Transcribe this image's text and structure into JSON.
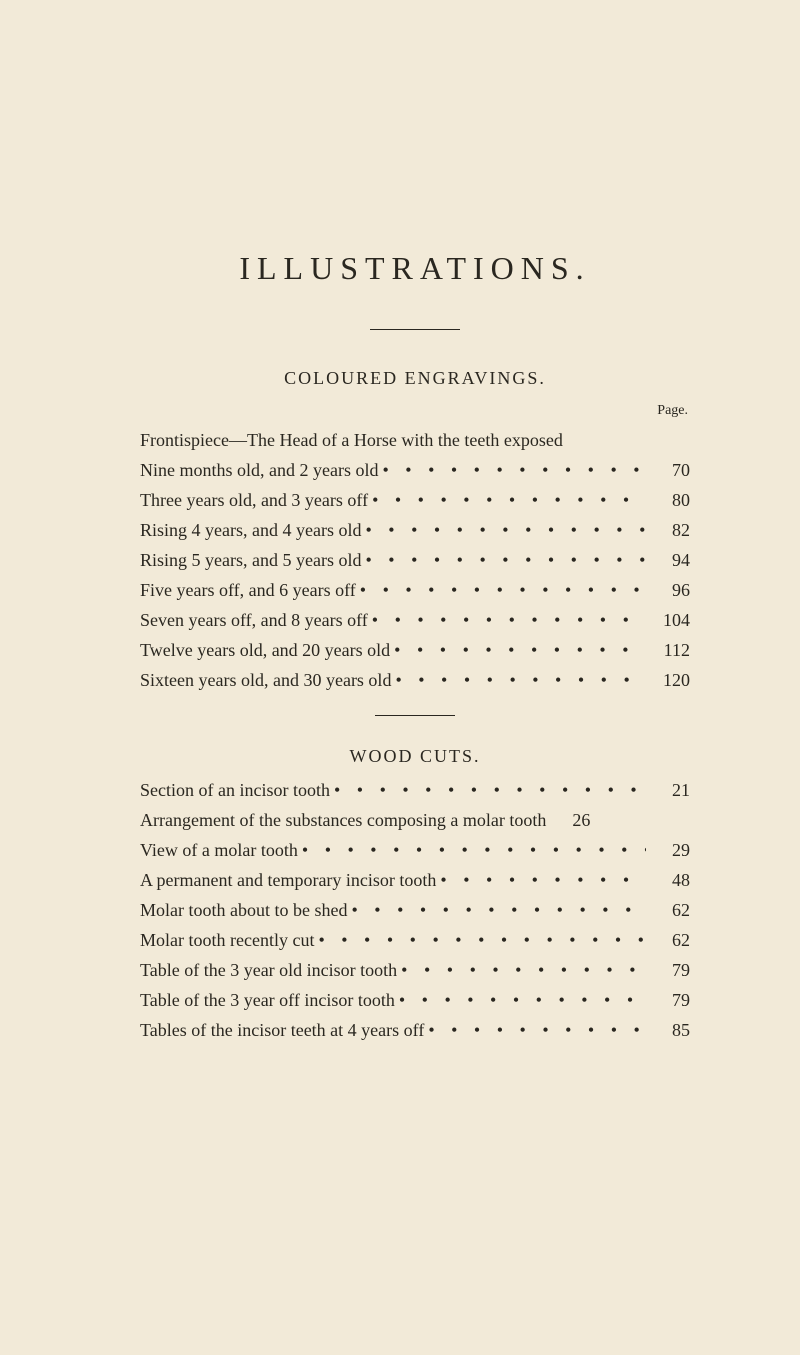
{
  "title": "ILLUSTRATIONS.",
  "page_label": "Page.",
  "coloured": {
    "heading": "COLOURED ENGRAVINGS.",
    "entries": [
      {
        "label": "Frontispiece—The Head of a Horse with the teeth exposed",
        "page": ""
      },
      {
        "label": "Nine months old, and 2 years old",
        "page": "70"
      },
      {
        "label": "Three years old, and 3 years off",
        "page": "80"
      },
      {
        "label": "Rising 4 years, and 4 years old",
        "page": "82"
      },
      {
        "label": "Rising 5 years, and 5 years old",
        "page": "94"
      },
      {
        "label": "Five years off, and 6 years off",
        "page": "96"
      },
      {
        "label": "Seven years off, and 8 years off",
        "page": "104"
      },
      {
        "label": "Twelve years old, and 20 years old",
        "page": "112"
      },
      {
        "label": "Sixteen years old, and 30 years old",
        "page": "120"
      }
    ]
  },
  "woodcuts": {
    "heading": "WOOD CUTS.",
    "entries": [
      {
        "label": "Section of an incisor tooth",
        "page": "21"
      },
      {
        "label": "Arrangement of the substances composing a molar tooth",
        "page": "26"
      },
      {
        "label": "View of a molar tooth",
        "page": "29"
      },
      {
        "label": "A permanent and temporary incisor tooth",
        "page": "48"
      },
      {
        "label": "Molar tooth about to be shed",
        "page": "62"
      },
      {
        "label": "Molar tooth recently cut",
        "page": "62"
      },
      {
        "label": "Table of the 3 year old incisor tooth",
        "page": "79"
      },
      {
        "label": "Table of the 3 year off incisor tooth",
        "page": "79"
      },
      {
        "label": "Tables of the incisor teeth at 4 years off",
        "page": "85"
      }
    ]
  },
  "dot_leader": "• • • • • • • • • • • • • • • • • • • • • • • • • • • • • • • • • • • • • • • •"
}
